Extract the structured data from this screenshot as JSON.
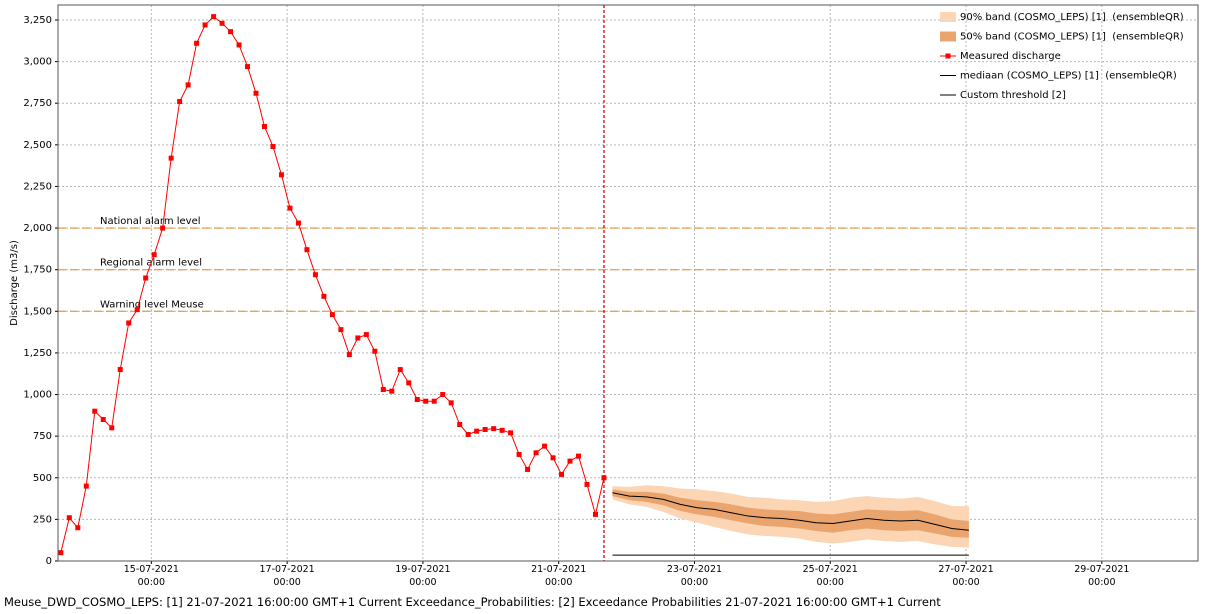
{
  "chart_data": {
    "type": "line",
    "y_label": "Discharge (m3/s)",
    "caption": "Meuse_DWD_COSMO_LEPS: [1] 21-07-2021 16:00:00 GMT+1 Current Exceedance_Probabilities: [2] Exceedance Probabilities 21-07-2021 16:00:00 GMT+1 Current",
    "xlim": [
      "13-07-2021 15:00",
      "30-07-2021 10:00"
    ],
    "xticks": [
      "15-07-2021 00:00",
      "17-07-2021 00:00",
      "19-07-2021 00:00",
      "21-07-2021 00:00",
      "23-07-2021 00:00",
      "25-07-2021 00:00",
      "27-07-2021 00:00",
      "29-07-2021 00:00"
    ],
    "ylim": [
      0,
      3340
    ],
    "yticks": [
      0,
      250,
      500,
      750,
      {
        "value": 1000,
        "label": "1,000"
      },
      {
        "value": 1250,
        "label": "1,250"
      },
      {
        "value": 1500,
        "label": "1,500"
      },
      {
        "value": 1750,
        "label": "1,750"
      },
      {
        "value": 2000,
        "label": "2,000"
      },
      {
        "value": 2250,
        "label": "2,250"
      },
      {
        "value": 2500,
        "label": "2,500"
      },
      {
        "value": 2750,
        "label": "2,750"
      },
      {
        "value": 3000,
        "label": "3,000"
      },
      {
        "value": 3250,
        "label": "3,250"
      }
    ],
    "grid": true,
    "legend": "upper right",
    "time_marker": "21-07-2021 16:00",
    "time_marker_color": "#e00000",
    "thresholds": [
      {
        "label": "National alarm level",
        "value": 2000,
        "color": "#f0a050"
      },
      {
        "label": "Regional alarm level",
        "value": 1750,
        "color": "#f0a050"
      },
      {
        "label": "Warning level Meuse",
        "value": 1500,
        "color": "#f0a050"
      }
    ],
    "bands": [
      {
        "name": "90% band (COSMO_LEPS) [1]  (ensembleQR)",
        "color": "#fcd5b4",
        "x": [
          "21-07-2021 19:00",
          "22-07-2021 01:00",
          "22-07-2021 07:00",
          "22-07-2021 13:00",
          "22-07-2021 19:00",
          "23-07-2021 01:00",
          "23-07-2021 07:00",
          "23-07-2021 13:00",
          "23-07-2021 19:00",
          "24-07-2021 01:00",
          "24-07-2021 07:00",
          "24-07-2021 13:00",
          "24-07-2021 19:00",
          "25-07-2021 01:00",
          "25-07-2021 07:00",
          "25-07-2021 13:00",
          "25-07-2021 19:00",
          "26-07-2021 01:00",
          "26-07-2021 07:00",
          "26-07-2021 13:00",
          "26-07-2021 19:00",
          "27-07-2021 01:00"
        ],
        "lower": [
          370,
          340,
          325,
          295,
          255,
          230,
          205,
          180,
          160,
          150,
          145,
          135,
          115,
          105,
          115,
          130,
          120,
          115,
          120,
          100,
          85,
          80
        ],
        "upper": [
          450,
          445,
          455,
          450,
          435,
          430,
          420,
          405,
          385,
          380,
          370,
          365,
          355,
          360,
          380,
          390,
          380,
          375,
          385,
          360,
          330,
          330
        ]
      },
      {
        "name": "50% band (COSMO_LEPS) [1]  (ensembleQR)",
        "color": "#e9a56d",
        "x": [
          "21-07-2021 19:00",
          "22-07-2021 01:00",
          "22-07-2021 07:00",
          "22-07-2021 13:00",
          "22-07-2021 19:00",
          "23-07-2021 01:00",
          "23-07-2021 07:00",
          "23-07-2021 13:00",
          "23-07-2021 19:00",
          "24-07-2021 01:00",
          "24-07-2021 07:00",
          "24-07-2021 13:00",
          "24-07-2021 19:00",
          "25-07-2021 01:00",
          "25-07-2021 07:00",
          "25-07-2021 13:00",
          "25-07-2021 19:00",
          "26-07-2021 01:00",
          "26-07-2021 07:00",
          "26-07-2021 13:00",
          "26-07-2021 19:00",
          "27-07-2021 01:00"
        ],
        "lower": [
          390,
          365,
          355,
          335,
          300,
          280,
          265,
          245,
          225,
          210,
          205,
          195,
          180,
          170,
          185,
          195,
          185,
          180,
          185,
          165,
          145,
          140
        ],
        "upper": [
          430,
          415,
          415,
          405,
          380,
          365,
          355,
          340,
          320,
          310,
          305,
          300,
          285,
          280,
          295,
          310,
          305,
          300,
          305,
          280,
          250,
          240
        ]
      }
    ],
    "series": [
      {
        "name": "Measured discharge",
        "color": "#ff0000",
        "marker": "square",
        "x": [
          "13-07-2021 16:00",
          "13-07-2021 19:00",
          "13-07-2021 22:00",
          "14-07-2021 01:00",
          "14-07-2021 04:00",
          "14-07-2021 07:00",
          "14-07-2021 10:00",
          "14-07-2021 13:00",
          "14-07-2021 16:00",
          "14-07-2021 19:00",
          "14-07-2021 22:00",
          "15-07-2021 01:00",
          "15-07-2021 04:00",
          "15-07-2021 07:00",
          "15-07-2021 10:00",
          "15-07-2021 13:00",
          "15-07-2021 16:00",
          "15-07-2021 19:00",
          "15-07-2021 22:00",
          "16-07-2021 01:00",
          "16-07-2021 04:00",
          "16-07-2021 07:00",
          "16-07-2021 10:00",
          "16-07-2021 13:00",
          "16-07-2021 16:00",
          "16-07-2021 19:00",
          "16-07-2021 22:00",
          "17-07-2021 01:00",
          "17-07-2021 04:00",
          "17-07-2021 07:00",
          "17-07-2021 10:00",
          "17-07-2021 13:00",
          "17-07-2021 16:00",
          "17-07-2021 19:00",
          "17-07-2021 22:00",
          "18-07-2021 01:00",
          "18-07-2021 04:00",
          "18-07-2021 07:00",
          "18-07-2021 10:00",
          "18-07-2021 13:00",
          "18-07-2021 16:00",
          "18-07-2021 19:00",
          "18-07-2021 22:00",
          "19-07-2021 01:00",
          "19-07-2021 04:00",
          "19-07-2021 07:00",
          "19-07-2021 10:00",
          "19-07-2021 13:00",
          "19-07-2021 16:00",
          "19-07-2021 19:00",
          "19-07-2021 22:00",
          "20-07-2021 01:00",
          "20-07-2021 04:00",
          "20-07-2021 07:00",
          "20-07-2021 10:00",
          "20-07-2021 13:00",
          "20-07-2021 16:00",
          "20-07-2021 19:00",
          "20-07-2021 22:00",
          "21-07-2021 01:00",
          "21-07-2021 04:00",
          "21-07-2021 07:00",
          "21-07-2021 10:00",
          "21-07-2021 13:00",
          "21-07-2021 16:00"
        ],
        "values": [
          50,
          260,
          200,
          450,
          900,
          850,
          800,
          1150,
          1430,
          1510,
          1700,
          1840,
          2000,
          2420,
          2760,
          2860,
          3110,
          3220,
          3270,
          3230,
          3180,
          3100,
          2970,
          2810,
          2610,
          2490,
          2320,
          2120,
          2030,
          1870,
          1720,
          1590,
          1480,
          1390,
          1240,
          1340,
          1360,
          1260,
          1030,
          1020,
          1150,
          1070,
          970,
          960,
          960,
          1000,
          950,
          820,
          760,
          780,
          790,
          795,
          785,
          770,
          640,
          550,
          650,
          690,
          620,
          520,
          600,
          630,
          460,
          280,
          500
        ]
      },
      {
        "name": "mediaan (COSMO_LEPS) [1]  (ensembleQR)",
        "color": "#000000",
        "x": [
          "21-07-2021 19:00",
          "22-07-2021 01:00",
          "22-07-2021 07:00",
          "22-07-2021 13:00",
          "22-07-2021 19:00",
          "23-07-2021 01:00",
          "23-07-2021 07:00",
          "23-07-2021 13:00",
          "23-07-2021 19:00",
          "24-07-2021 01:00",
          "24-07-2021 07:00",
          "24-07-2021 13:00",
          "24-07-2021 19:00",
          "25-07-2021 01:00",
          "25-07-2021 07:00",
          "25-07-2021 13:00",
          "25-07-2021 19:00",
          "26-07-2021 01:00",
          "26-07-2021 07:00",
          "26-07-2021 13:00",
          "26-07-2021 19:00",
          "27-07-2021 01:00"
        ],
        "values": [
          410,
          390,
          385,
          370,
          340,
          320,
          310,
          290,
          270,
          260,
          255,
          245,
          230,
          225,
          240,
          255,
          245,
          240,
          245,
          220,
          195,
          185
        ]
      },
      {
        "name": "Custom threshold [2]",
        "color": "#000000",
        "x": [
          "21-07-2021 19:00",
          "27-07-2021 01:00"
        ],
        "values": [
          35,
          35
        ]
      }
    ]
  }
}
